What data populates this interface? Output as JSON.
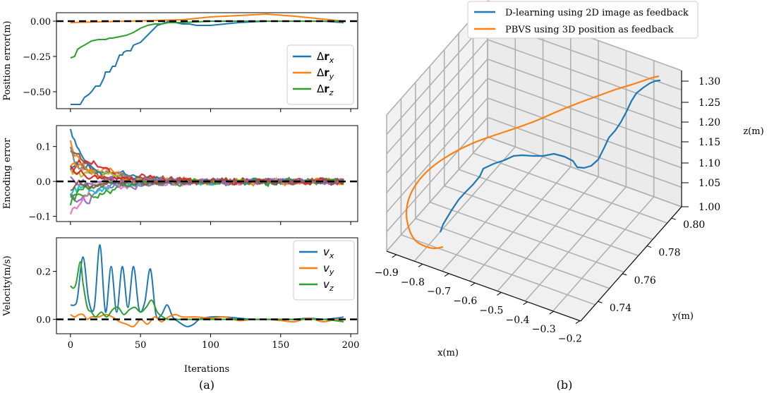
{
  "figure": {
    "label_a": "(a)",
    "label_b": "(b)"
  },
  "chart_data": [
    {
      "type": "line",
      "title": "",
      "ylabel": "Position error(m)",
      "xlim": [
        -10,
        205
      ],
      "ylim": [
        -0.62,
        0.06
      ],
      "yticks": [
        0.0,
        -0.25,
        -0.5
      ],
      "ytick_labels": [
        "0.00",
        "−0.25",
        "−0.50"
      ],
      "zero_line": true,
      "legend": "right",
      "series": [
        {
          "name": "Δr",
          "sub": "x",
          "color": "#1f77b4",
          "x": [
            0,
            3,
            4,
            7,
            10,
            13,
            15,
            18,
            19,
            21,
            24,
            25,
            28,
            30,
            32,
            35,
            37,
            38,
            40,
            43,
            45,
            50,
            53,
            55,
            60,
            62,
            65,
            68,
            70,
            72,
            75,
            80,
            85,
            90,
            100,
            110,
            120,
            140,
            160,
            180,
            195
          ],
          "y": [
            -0.59,
            -0.59,
            -0.59,
            -0.59,
            -0.54,
            -0.52,
            -0.5,
            -0.46,
            -0.46,
            -0.46,
            -0.4,
            -0.36,
            -0.36,
            -0.32,
            -0.32,
            -0.24,
            -0.24,
            -0.22,
            -0.21,
            -0.21,
            -0.17,
            -0.15,
            -0.12,
            -0.1,
            -0.05,
            -0.03,
            -0.02,
            -0.01,
            0.0,
            0.0,
            -0.01,
            -0.02,
            -0.02,
            -0.03,
            -0.03,
            -0.02,
            -0.01,
            0.0,
            0.0,
            0.0,
            -0.01
          ]
        },
        {
          "name": "Δr",
          "sub": "y",
          "color": "#ff7f0e",
          "x": [
            0,
            20,
            40,
            60,
            80,
            100,
            120,
            140,
            160,
            180,
            195
          ],
          "y": [
            -0.01,
            -0.005,
            0.0,
            0.005,
            0.01,
            0.03,
            0.04,
            0.05,
            0.035,
            0.015,
            0.0
          ]
        },
        {
          "name": "Δr",
          "sub": "z",
          "color": "#2ca02c",
          "x": [
            0,
            3,
            5,
            8,
            10,
            15,
            20,
            25,
            28,
            30,
            35,
            40,
            45,
            50,
            55,
            60,
            65,
            70,
            80,
            90,
            100,
            120,
            140,
            160,
            180,
            195
          ],
          "y": [
            -0.26,
            -0.25,
            -0.2,
            -0.18,
            -0.17,
            -0.14,
            -0.13,
            -0.13,
            -0.12,
            -0.12,
            -0.11,
            -0.1,
            -0.08,
            -0.05,
            -0.03,
            -0.02,
            -0.02,
            -0.01,
            -0.01,
            -0.005,
            0.0,
            0.0,
            0.0,
            0.0,
            0.0,
            0.0
          ]
        }
      ]
    },
    {
      "type": "line",
      "ylabel": "Encoding error",
      "xlim": [
        -10,
        205
      ],
      "ylim": [
        -0.115,
        0.16
      ],
      "yticks": [
        0.1,
        0.0,
        -0.1
      ],
      "ytick_labels": [
        "0.1",
        "0.0",
        "−0.1"
      ],
      "zero_line": true,
      "series_count": 16,
      "palette": [
        "#1f77b4",
        "#ff7f0e",
        "#2ca02c",
        "#d62728",
        "#9467bd",
        "#8c564b",
        "#e377c2",
        "#7f7f7f",
        "#bcbd22",
        "#17becf"
      ],
      "initial_amplitudes": [
        0.15,
        0.13,
        -0.1,
        0.12,
        -0.09,
        0.1,
        -0.08,
        0.09,
        0.07,
        -0.06,
        0.06,
        0.05,
        -0.05,
        0.04,
        0.03,
        -0.03
      ]
    },
    {
      "type": "line",
      "ylabel": "Velocity(m/s)",
      "xlabel": "Iterations",
      "xlim": [
        -10,
        205
      ],
      "ylim": [
        -0.06,
        0.34
      ],
      "yticks": [
        0.2,
        0.0
      ],
      "ytick_labels": [
        "0.2",
        "0.0"
      ],
      "xticks": [
        0,
        50,
        100,
        150,
        200
      ],
      "xtick_labels": [
        "0",
        "50",
        "100",
        "150",
        "200"
      ],
      "zero_line": true,
      "legend": "right",
      "series": [
        {
          "name": "v",
          "sub": "x",
          "color": "#1f77b4",
          "x": [
            0,
            3,
            5,
            9,
            13,
            17,
            21,
            25,
            29,
            33,
            37,
            41,
            45,
            49,
            53,
            57,
            61,
            65,
            69,
            73,
            77,
            83,
            88,
            92,
            100,
            110,
            120,
            130,
            140,
            150,
            160,
            170,
            180,
            190,
            195
          ],
          "y": [
            0.06,
            0.06,
            0.09,
            0.26,
            0.08,
            0.05,
            0.31,
            0.03,
            0.22,
            0.03,
            0.22,
            0.05,
            0.22,
            0.04,
            0.07,
            0.21,
            0.02,
            0.02,
            0.06,
            0.01,
            -0.01,
            -0.03,
            -0.02,
            0.0,
            0.01,
            0.01,
            0.005,
            0.0,
            0.0,
            0.0,
            0.0,
            0.005,
            0.0,
            0.005,
            0.01
          ]
        },
        {
          "name": "v",
          "sub": "y",
          "color": "#ff7f0e",
          "x": [
            0,
            3,
            6,
            9,
            12,
            15,
            20,
            25,
            30,
            35,
            40,
            45,
            50,
            55,
            60,
            65,
            70,
            75,
            80,
            90,
            100,
            110,
            120,
            130,
            140,
            150,
            160,
            170,
            180,
            190,
            195
          ],
          "y": [
            0.02,
            0.01,
            0.02,
            0.02,
            0.0,
            0.01,
            0.01,
            0.02,
            0.01,
            -0.01,
            -0.02,
            -0.03,
            0.0,
            -0.02,
            0.01,
            -0.01,
            0.01,
            0.02,
            0.01,
            0.01,
            0.005,
            0.01,
            -0.005,
            0.0,
            0.0,
            -0.005,
            -0.01,
            0.005,
            -0.01,
            0.0,
            -0.01
          ]
        },
        {
          "name": "v",
          "sub": "z",
          "color": "#2ca02c",
          "x": [
            0,
            2,
            4,
            7,
            9,
            12,
            15,
            18,
            22,
            26,
            30,
            34,
            38,
            42,
            46,
            50,
            54,
            58,
            62,
            66,
            70,
            80,
            90,
            100,
            120,
            140,
            160,
            180,
            195
          ],
          "y": [
            0.14,
            0.13,
            0.15,
            0.24,
            0.15,
            0.05,
            0.03,
            0.01,
            0.03,
            0.01,
            0.04,
            0.05,
            0.02,
            0.04,
            0.05,
            0.03,
            0.05,
            0.08,
            0.03,
            0.01,
            0.0,
            0.0,
            0.0,
            0.0,
            0.0,
            0.0,
            0.0,
            0.0,
            -0.01
          ]
        }
      ]
    },
    {
      "type": "line3d",
      "xlabel": "x(m)",
      "ylabel": "y(m)",
      "zlabel": "z(m)",
      "xticks": [
        "−0.9",
        "−0.8",
        "−0.7",
        "−0.6",
        "−0.5",
        "−0.4",
        "−0.3",
        "−0.2"
      ],
      "yticks": [
        "0.74",
        "0.76",
        "0.78",
        "0.80"
      ],
      "zticks": [
        "1.00",
        "1.05",
        "1.10",
        "1.15",
        "1.20",
        "1.25",
        "1.30"
      ],
      "legend": "top",
      "series": [
        {
          "name": "D-learning using 2D image as feedback",
          "color": "#1f77b4"
        },
        {
          "name": "PBVS using 3D position as feedback",
          "color": "#ff7f0e"
        }
      ]
    }
  ]
}
